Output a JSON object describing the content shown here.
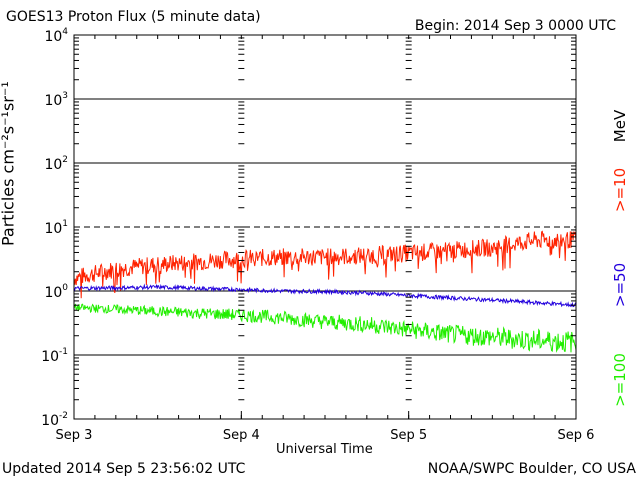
{
  "title": "GOES13 Proton Flux (5 minute data)",
  "begin": "Begin: 2014 Sep 3 0000 UTC",
  "updated": "Updated 2014 Sep  5 23:56:02 UTC",
  "credit": "NOAA/SWPC Boulder, CO USA",
  "chart_data": {
    "type": "line",
    "xlabel": "Universal Time",
    "ylabel": "Particles cm⁻²s⁻¹sr⁻¹",
    "yscale": "log",
    "ylim": [
      0.01,
      10000
    ],
    "ytick_labels": [
      {
        "base": "10",
        "exp": "4"
      },
      {
        "base": "10",
        "exp": "3"
      },
      {
        "base": "10",
        "exp": "2"
      },
      {
        "base": "10",
        "exp": "1"
      },
      {
        "base": "10",
        "exp": "0"
      },
      {
        "base": "10",
        "exp": "-1"
      },
      {
        "base": "10",
        "exp": "-2"
      }
    ],
    "xticks": [
      "Sep 3",
      "Sep 4",
      "Sep 5",
      "Sep 6"
    ],
    "xlim": [
      "2014-09-03 00:00",
      "2014-09-06 00:00"
    ],
    "grid": "horizontal at each decade, dashed at 10^1",
    "legend_unit": "MeV",
    "series": [
      {
        "name": ">=10",
        "color": "#ff2200",
        "x": [
          "2014-09-03 00:00",
          "2014-09-03 06:00",
          "2014-09-03 12:00",
          "2014-09-03 18:00",
          "2014-09-04 00:00",
          "2014-09-04 06:00",
          "2014-09-04 12:00",
          "2014-09-04 18:00",
          "2014-09-05 00:00",
          "2014-09-05 06:00",
          "2014-09-05 12:00",
          "2014-09-05 18:00",
          "2014-09-06 00:00"
        ],
        "y": [
          1.6,
          2.2,
          2.6,
          2.9,
          3.2,
          3.4,
          3.4,
          3.6,
          3.9,
          4.3,
          4.8,
          6.2,
          6.3
        ]
      },
      {
        "name": ">=50",
        "color": "#2200dd",
        "x": [
          "2014-09-03 00:00",
          "2014-09-03 06:00",
          "2014-09-03 12:00",
          "2014-09-03 18:00",
          "2014-09-04 00:00",
          "2014-09-04 06:00",
          "2014-09-04 12:00",
          "2014-09-04 18:00",
          "2014-09-05 00:00",
          "2014-09-05 06:00",
          "2014-09-05 12:00",
          "2014-09-05 18:00",
          "2014-09-06 00:00"
        ],
        "y": [
          1.1,
          1.12,
          1.15,
          1.1,
          1.05,
          1.0,
          0.98,
          0.93,
          0.85,
          0.78,
          0.72,
          0.66,
          0.6
        ]
      },
      {
        "name": ">=100",
        "color": "#22ee00",
        "x": [
          "2014-09-03 00:00",
          "2014-09-03 06:00",
          "2014-09-03 12:00",
          "2014-09-03 18:00",
          "2014-09-04 00:00",
          "2014-09-04 06:00",
          "2014-09-04 12:00",
          "2014-09-04 18:00",
          "2014-09-05 00:00",
          "2014-09-05 06:00",
          "2014-09-05 12:00",
          "2014-09-05 18:00",
          "2014-09-06 00:00"
        ],
        "y": [
          0.55,
          0.52,
          0.48,
          0.45,
          0.42,
          0.38,
          0.33,
          0.3,
          0.25,
          0.21,
          0.19,
          0.17,
          0.16
        ]
      }
    ]
  }
}
